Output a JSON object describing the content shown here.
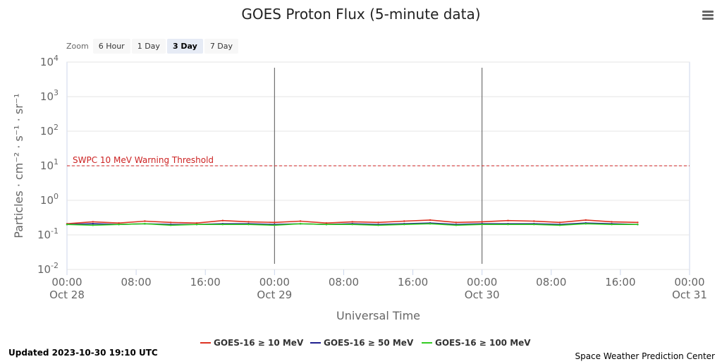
{
  "title": "GOES Proton Flux (5-minute data)",
  "zoom": {
    "label": "Zoom",
    "buttons": [
      "6 Hour",
      "1 Day",
      "3 Day",
      "7 Day"
    ],
    "active": "3 Day"
  },
  "updated": "Updated 2023-10-30 19:10 UTC",
  "credit": "Space Weather Prediction Center",
  "chart_data": {
    "type": "line",
    "title": "GOES Proton Flux (5-minute data)",
    "xlabel": "Universal Time",
    "ylabel": "Particles · cm⁻² · s⁻¹ · sr⁻¹",
    "y_scale": "log",
    "ylim": [
      0.01,
      10000
    ],
    "y_ticks": [
      {
        "value": 0.01,
        "base": "10",
        "exp": "-2"
      },
      {
        "value": 0.1,
        "base": "10",
        "exp": "-1"
      },
      {
        "value": 1,
        "base": "10",
        "exp": "0"
      },
      {
        "value": 10,
        "base": "10",
        "exp": "1"
      },
      {
        "value": 100,
        "base": "10",
        "exp": "2"
      },
      {
        "value": 1000,
        "base": "10",
        "exp": "3"
      },
      {
        "value": 10000,
        "base": "10",
        "exp": "4"
      }
    ],
    "xlim": [
      "2023-10-28 00:00",
      "2023-10-31 00:00"
    ],
    "x_ticks": [
      {
        "time": "00:00",
        "date": "Oct 28"
      },
      {
        "time": "08:00",
        "date": ""
      },
      {
        "time": "16:00",
        "date": ""
      },
      {
        "time": "00:00",
        "date": "Oct 29"
      },
      {
        "time": "08:00",
        "date": ""
      },
      {
        "time": "16:00",
        "date": ""
      },
      {
        "time": "00:00",
        "date": "Oct 30"
      },
      {
        "time": "08:00",
        "date": ""
      },
      {
        "time": "16:00",
        "date": ""
      },
      {
        "time": "00:00",
        "date": "Oct 31"
      }
    ],
    "day_lines": [
      "2023-10-29 00:00",
      "2023-10-30 00:00"
    ],
    "threshold": {
      "label": "SWPC 10 MeV Warning Threshold",
      "value": 10,
      "color": "#cc2222"
    },
    "x_hours": [
      0,
      3,
      6,
      9,
      12,
      15,
      18,
      21,
      24,
      27,
      30,
      33,
      36,
      39,
      42,
      45,
      48,
      51,
      54,
      57,
      60,
      63,
      66
    ],
    "series": [
      {
        "name": "GOES-16 ≥ 10 MeV",
        "color": "#dd3322",
        "values": [
          0.21,
          0.24,
          0.22,
          0.25,
          0.23,
          0.22,
          0.26,
          0.24,
          0.23,
          0.25,
          0.22,
          0.24,
          0.23,
          0.25,
          0.27,
          0.23,
          0.24,
          0.26,
          0.25,
          0.23,
          0.27,
          0.24,
          0.23
        ]
      },
      {
        "name": "GOES-16 ≥ 50 MeV",
        "color": "#1f1f8f",
        "values": [
          0.2,
          0.21,
          0.2,
          0.21,
          0.2,
          0.2,
          0.21,
          0.21,
          0.2,
          0.21,
          0.2,
          0.21,
          0.2,
          0.21,
          0.22,
          0.2,
          0.21,
          0.21,
          0.21,
          0.2,
          0.22,
          0.21,
          0.2
        ]
      },
      {
        "name": "GOES-16 ≥ 100 MeV",
        "color": "#33cc22",
        "values": [
          0.2,
          0.19,
          0.2,
          0.21,
          0.19,
          0.2,
          0.2,
          0.2,
          0.19,
          0.21,
          0.2,
          0.2,
          0.19,
          0.2,
          0.21,
          0.19,
          0.2,
          0.2,
          0.2,
          0.19,
          0.21,
          0.2,
          0.2
        ]
      }
    ]
  }
}
